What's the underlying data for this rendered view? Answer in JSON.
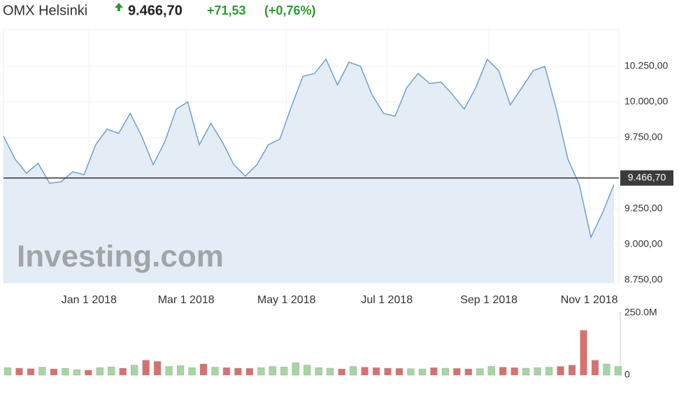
{
  "header": {
    "title": "OMX Helsinki",
    "change": "+71,53",
    "change_pct": "(+0,76%)"
  },
  "watermark": "Investing.com",
  "chart_data": [
    {
      "type": "line",
      "color": "#6f9fd0",
      "fill": "#e4edf5",
      "grid": true,
      "x": [
        "2017-11-10",
        "2017-11-17",
        "2017-11-24",
        "2017-12-01",
        "2017-12-08",
        "2017-12-15",
        "2017-12-22",
        "2017-12-29",
        "2018-01-05",
        "2018-01-12",
        "2018-01-19",
        "2018-01-26",
        "2018-02-02",
        "2018-02-09",
        "2018-02-16",
        "2018-02-23",
        "2018-03-02",
        "2018-03-09",
        "2018-03-16",
        "2018-03-23",
        "2018-03-30",
        "2018-04-06",
        "2018-04-13",
        "2018-04-20",
        "2018-04-27",
        "2018-05-04",
        "2018-05-11",
        "2018-05-18",
        "2018-05-25",
        "2018-06-01",
        "2018-06-08",
        "2018-06-15",
        "2018-06-22",
        "2018-06-29",
        "2018-07-06",
        "2018-07-13",
        "2018-07-20",
        "2018-07-27",
        "2018-08-03",
        "2018-08-10",
        "2018-08-17",
        "2018-08-24",
        "2018-08-31",
        "2018-09-07",
        "2018-09-14",
        "2018-09-21",
        "2018-09-28",
        "2018-10-05",
        "2018-10-12",
        "2018-10-19",
        "2018-10-26",
        "2018-11-02",
        "2018-11-09",
        "2018-11-16"
      ],
      "values": [
        9760,
        9600,
        9500,
        9570,
        9430,
        9440,
        9510,
        9490,
        9700,
        9810,
        9780,
        9920,
        9760,
        9560,
        9720,
        9950,
        10000,
        9700,
        9850,
        9720,
        9560,
        9480,
        9560,
        9700,
        9740,
        9970,
        10180,
        10200,
        10300,
        10120,
        10280,
        10250,
        10050,
        9920,
        9900,
        10100,
        10200,
        10130,
        10140,
        10050,
        9950,
        10100,
        10300,
        10220,
        9980,
        10100,
        10220,
        10250,
        9950,
        9600,
        9420,
        9050,
        9220,
        9420
      ],
      "xlim": [
        "2017-11-10",
        "2018-11-19"
      ],
      "xticks": [
        {
          "value": "2018-01-01",
          "label": "Jan 1 2018"
        },
        {
          "value": "2018-03-01",
          "label": "Mar 1 2018"
        },
        {
          "value": "2018-05-01",
          "label": "May 1 2018"
        },
        {
          "value": "2018-07-01",
          "label": "Jul 1 2018"
        },
        {
          "value": "2018-09-01",
          "label": "Sep 1 2018"
        },
        {
          "value": "2018-11-01",
          "label": "Nov 1 2018"
        }
      ],
      "ylim": [
        8730,
        10510
      ],
      "yticks": [
        {
          "value": 8750,
          "label": "8.750,00"
        },
        {
          "value": 9000,
          "label": "9.000,00"
        },
        {
          "value": 9250,
          "label": "9.250,00"
        },
        {
          "value": 9750,
          "label": "9.750,00"
        },
        {
          "value": 10000,
          "label": "10.000,00"
        },
        {
          "value": 10250,
          "label": "10.250,00"
        }
      ],
      "last_value": 9466.7,
      "last_label": "9.466,70"
    },
    {
      "type": "bar",
      "up_color": "#a5d6a0",
      "down_color": "#d9706c",
      "values": [
        30,
        28,
        26,
        32,
        25,
        27,
        22,
        20,
        30,
        33,
        28,
        40,
        60,
        55,
        35,
        38,
        30,
        45,
        32,
        30,
        28,
        27,
        30,
        35,
        33,
        50,
        40,
        30,
        28,
        25,
        35,
        32,
        30,
        28,
        27,
        26,
        25,
        30,
        28,
        27,
        25,
        26,
        35,
        32,
        30,
        28,
        30,
        32,
        35,
        40,
        180,
        60,
        45,
        35
      ],
      "ylim": [
        0,
        250
      ],
      "yticks": [
        0,
        {
          "value": 250,
          "label": "250.0M"
        }
      ]
    }
  ]
}
